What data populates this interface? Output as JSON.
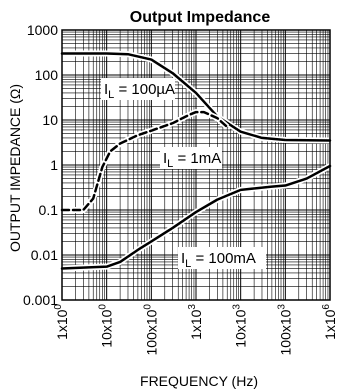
{
  "chart_data": {
    "type": "line",
    "title": "Output Impedance",
    "xlabel": "FREQUENCY (Hz)",
    "ylabel": "OUTPUT IMPEDANCE (Ω)",
    "x_scale": "log",
    "y_scale": "log",
    "xlim": [
      1,
      1000000
    ],
    "ylim": [
      0.001,
      1000
    ],
    "grid": true,
    "x_ticks": [
      {
        "value": 1,
        "label": "1x10",
        "exp": "0"
      },
      {
        "value": 10,
        "label": "10x10",
        "exp": "0"
      },
      {
        "value": 100,
        "label": "100x10",
        "exp": "0"
      },
      {
        "value": 1000,
        "label": "1x10",
        "exp": "3"
      },
      {
        "value": 10000,
        "label": "10x10",
        "exp": "3"
      },
      {
        "value": 100000,
        "label": "100x10",
        "exp": "3"
      },
      {
        "value": 1000000,
        "label": "1x10",
        "exp": "6"
      }
    ],
    "y_ticks": [
      {
        "value": 1000,
        "label": "1000"
      },
      {
        "value": 100,
        "label": "100"
      },
      {
        "value": 10,
        "label": "10"
      },
      {
        "value": 1,
        "label": "1"
      },
      {
        "value": 0.1,
        "label": "0.1"
      },
      {
        "value": 0.01,
        "label": "0.01"
      },
      {
        "value": 0.001,
        "label": "0.001"
      }
    ],
    "series": [
      {
        "name": "I_L = 100µA",
        "label_main": "I",
        "label_sub": "L",
        "label_rest": " = 100µA",
        "style": "solid",
        "points": [
          [
            1,
            300
          ],
          [
            10,
            300
          ],
          [
            30,
            290
          ],
          [
            100,
            220
          ],
          [
            300,
            110
          ],
          [
            1000,
            40
          ],
          [
            3000,
            12
          ],
          [
            10000,
            5.5
          ],
          [
            30000,
            4
          ],
          [
            100000,
            3.6
          ],
          [
            1000000,
            3.5
          ]
        ]
      },
      {
        "name": "I_L = 1mA",
        "label_main": "I",
        "label_sub": "L",
        "label_rest": " = 1mA",
        "style": "dashed",
        "points": [
          [
            1,
            0.1
          ],
          [
            3,
            0.1
          ],
          [
            5,
            0.18
          ],
          [
            8,
            0.9
          ],
          [
            12,
            2.0
          ],
          [
            20,
            3.0
          ],
          [
            50,
            4.6
          ],
          [
            100,
            5.8
          ],
          [
            300,
            8.5
          ],
          [
            700,
            13
          ],
          [
            1000,
            15
          ],
          [
            1500,
            15
          ],
          [
            3000,
            11
          ],
          [
            5000,
            7
          ]
        ]
      },
      {
        "name": "I_L = 100mA",
        "label_main": "I",
        "label_sub": "L",
        "label_rest": " = 100mA",
        "style": "solid",
        "points": [
          [
            1,
            0.005
          ],
          [
            10,
            0.0055
          ],
          [
            20,
            0.007
          ],
          [
            50,
            0.013
          ],
          [
            100,
            0.02
          ],
          [
            300,
            0.04
          ],
          [
            1000,
            0.09
          ],
          [
            3000,
            0.17
          ],
          [
            10000,
            0.28
          ],
          [
            50000,
            0.33
          ],
          [
            100000,
            0.35
          ],
          [
            300000,
            0.5
          ],
          [
            1000000,
            0.95
          ]
        ]
      }
    ]
  }
}
